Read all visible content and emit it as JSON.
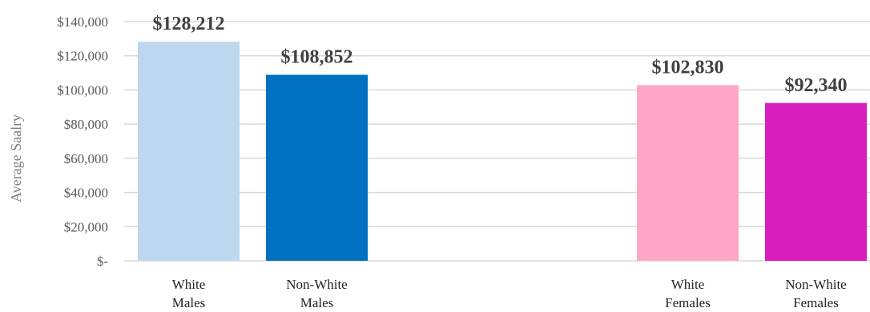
{
  "chart_data": {
    "type": "bar",
    "ylabel": "Average Saalry",
    "ylim": [
      0,
      140000
    ],
    "y_step": 20000,
    "y_tick_labels": [
      "$-",
      "$20,000",
      "$40,000",
      "$60,000",
      "$80,000",
      "$100,000",
      "$120,000",
      "$140,000"
    ],
    "grid": true,
    "legend": "none",
    "categories": [
      {
        "label_lines": [
          "White",
          "Males"
        ],
        "value": 128212,
        "value_label": "$128,212",
        "color": "#BDD7EE"
      },
      {
        "label_lines": [
          "Non-White",
          "Males"
        ],
        "value": 108852,
        "value_label": "$108,852",
        "color": "#0070C0"
      },
      {
        "label_lines": [
          "White",
          "Females"
        ],
        "value": 102830,
        "value_label": "$102,830",
        "color": "#FFA6C8"
      },
      {
        "label_lines": [
          "Non-White",
          "Females"
        ],
        "value": 92340,
        "value_label": "$92,340",
        "color": "#D91EBE"
      }
    ],
    "colors": {
      "grid": "#D9D9D9"
    }
  }
}
